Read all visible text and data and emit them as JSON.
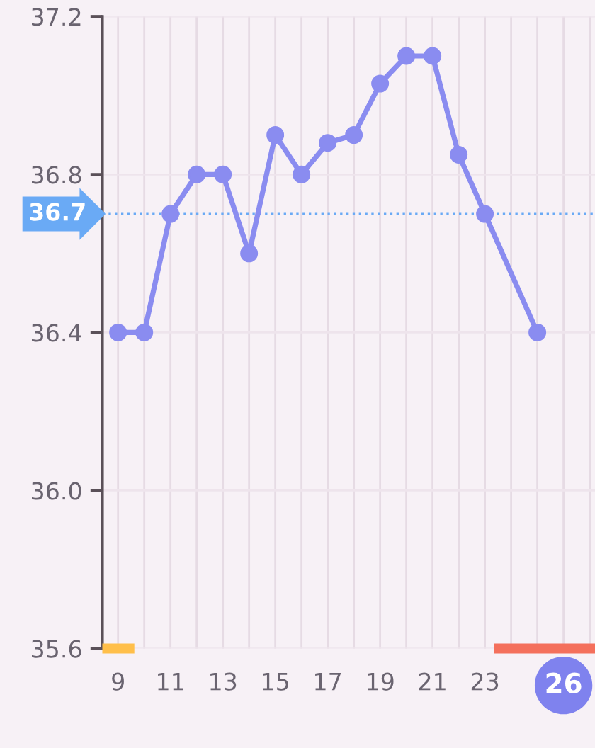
{
  "chart_data": {
    "type": "line",
    "series": [
      {
        "color": "#8a8cf0",
        "x": [
          9,
          10,
          11,
          12,
          13,
          14,
          15,
          16,
          17,
          18,
          19,
          20,
          21,
          22,
          23,
          25
        ],
        "values": [
          36.4,
          36.4,
          36.7,
          36.8,
          36.8,
          36.6,
          36.9,
          36.8,
          36.88,
          36.9,
          37.03,
          37.1,
          37.1,
          36.85,
          36.7,
          36.4
        ]
      }
    ],
    "xlim": [
      8.4,
      27.2
    ],
    "ylim": [
      35.6,
      37.2
    ],
    "xticks": [
      9,
      {
        "value": 10,
        "label": null
      },
      11,
      {
        "value": 12,
        "label": null
      },
      13,
      {
        "value": 14,
        "label": null
      },
      15,
      {
        "value": 16,
        "label": null
      },
      17,
      {
        "value": 18,
        "label": null
      },
      19,
      {
        "value": 20,
        "label": null
      },
      21,
      {
        "value": 22,
        "label": null
      },
      23,
      {
        "value": 24,
        "label": null
      },
      {
        "value": 25,
        "label": null
      },
      26,
      {
        "value": 27,
        "label": null
      }
    ],
    "yticks": [
      35.6,
      {
        "value": 36.0,
        "label": "36.0"
      },
      36.4,
      36.8,
      37.2
    ],
    "ref_lines": [
      {
        "axis": "y",
        "value": 36.7,
        "label": "36.7",
        "color": "#6aaaf5",
        "line_style": "dotted"
      }
    ],
    "grid": true,
    "marker": "circle",
    "line_style": "solid",
    "legend": false
  }
}
